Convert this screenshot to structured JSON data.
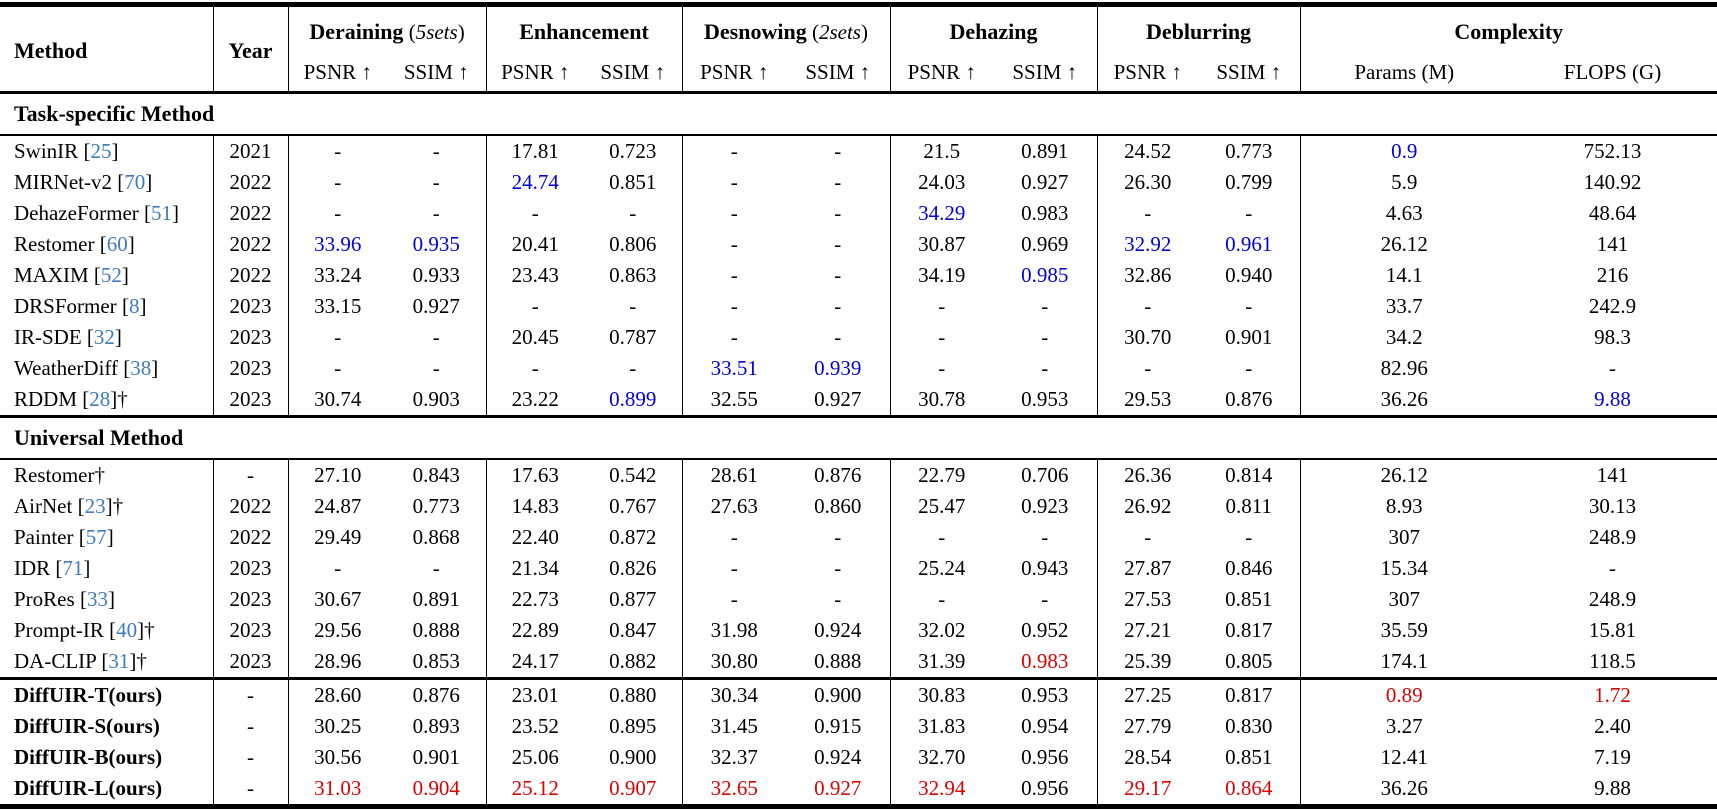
{
  "colors": {
    "citation_blue": "#3d7cbe",
    "best_task_specific_blue": "#0000dd",
    "best_universal_red": "#dd0000",
    "text": "#000000"
  },
  "header": {
    "method_label": "Method",
    "year_label": "Year",
    "groups": [
      {
        "name": "Deraining",
        "note": "5sets",
        "cols": [
          "PSNR ↑",
          "SSIM ↑"
        ]
      },
      {
        "name": "Enhancement",
        "note": "",
        "cols": [
          "PSNR ↑",
          "SSIM ↑"
        ]
      },
      {
        "name": "Desnowing",
        "note": "2sets",
        "cols": [
          "PSNR ↑",
          "SSIM ↑"
        ]
      },
      {
        "name": "Dehazing",
        "note": "",
        "cols": [
          "PSNR ↑",
          "SSIM ↑"
        ]
      },
      {
        "name": "Deblurring",
        "note": "",
        "cols": [
          "PSNR ↑",
          "SSIM ↑"
        ]
      },
      {
        "name": "Complexity",
        "note": "",
        "cols": [
          "Params (M)",
          "FLOPS (G)"
        ]
      }
    ]
  },
  "sections": [
    {
      "heading": "Task-specific Method",
      "rows": [
        {
          "method": "SwinIR",
          "cite": "25",
          "dagger": false,
          "bold": false,
          "year": "2021",
          "values": [
            "-",
            "-",
            "17.81",
            "0.723",
            "-",
            "-",
            "21.5",
            "0.891",
            "24.52",
            "0.773",
            "0.9",
            "752.13"
          ],
          "marks": {
            "10": "blue"
          }
        },
        {
          "method": "MIRNet-v2",
          "cite": "70",
          "dagger": false,
          "bold": false,
          "year": "2022",
          "values": [
            "-",
            "-",
            "24.74",
            "0.851",
            "-",
            "-",
            "24.03",
            "0.927",
            "26.30",
            "0.799",
            "5.9",
            "140.92"
          ],
          "marks": {
            "2": "blue"
          }
        },
        {
          "method": "DehazeFormer",
          "cite": "51",
          "dagger": false,
          "bold": false,
          "year": "2022",
          "values": [
            "-",
            "-",
            "-",
            "-",
            "-",
            "-",
            "34.29",
            "0.983",
            "-",
            "-",
            "4.63",
            "48.64"
          ],
          "marks": {
            "6": "blue"
          }
        },
        {
          "method": "Restomer",
          "cite": "60",
          "dagger": false,
          "bold": false,
          "year": "2022",
          "values": [
            "33.96",
            "0.935",
            "20.41",
            "0.806",
            "-",
            "-",
            "30.87",
            "0.969",
            "32.92",
            "0.961",
            "26.12",
            "141"
          ],
          "marks": {
            "0": "blue",
            "1": "blue",
            "8": "blue",
            "9": "blue"
          }
        },
        {
          "method": "MAXIM",
          "cite": "52",
          "dagger": false,
          "bold": false,
          "year": "2022",
          "values": [
            "33.24",
            "0.933",
            "23.43",
            "0.863",
            "-",
            "-",
            "34.19",
            "0.985",
            "32.86",
            "0.940",
            "14.1",
            "216"
          ],
          "marks": {
            "7": "blue"
          }
        },
        {
          "method": "DRSFormer",
          "cite": "8",
          "dagger": false,
          "bold": false,
          "year": "2023",
          "values": [
            "33.15",
            "0.927",
            "-",
            "-",
            "-",
            "-",
            "-",
            "-",
            "-",
            "-",
            "33.7",
            "242.9"
          ],
          "marks": {}
        },
        {
          "method": "IR-SDE",
          "cite": "32",
          "dagger": false,
          "bold": false,
          "year": "2023",
          "values": [
            "-",
            "-",
            "20.45",
            "0.787",
            "-",
            "-",
            "-",
            "-",
            "30.70",
            "0.901",
            "34.2",
            "98.3"
          ],
          "marks": {}
        },
        {
          "method": "WeatherDiff",
          "cite": "38",
          "dagger": false,
          "bold": false,
          "year": "2023",
          "values": [
            "-",
            "-",
            "-",
            "-",
            "33.51",
            "0.939",
            "-",
            "-",
            "-",
            "-",
            "82.96",
            "-"
          ],
          "marks": {
            "4": "blue",
            "5": "blue"
          }
        },
        {
          "method": "RDDM",
          "cite": "28",
          "dagger": true,
          "bold": false,
          "year": "2023",
          "values": [
            "30.74",
            "0.903",
            "23.22",
            "0.899",
            "32.55",
            "0.927",
            "30.78",
            "0.953",
            "29.53",
            "0.876",
            "36.26",
            "9.88"
          ],
          "marks": {
            "3": "blue",
            "11": "blue"
          }
        }
      ]
    },
    {
      "heading": "Universal Method",
      "rows": [
        {
          "method": "Restomer",
          "cite": "",
          "dagger": true,
          "bold": false,
          "year": "-",
          "values": [
            "27.10",
            "0.843",
            "17.63",
            "0.542",
            "28.61",
            "0.876",
            "22.79",
            "0.706",
            "26.36",
            "0.814",
            "26.12",
            "141"
          ],
          "marks": {}
        },
        {
          "method": "AirNet",
          "cite": "23",
          "dagger": true,
          "bold": false,
          "year": "2022",
          "values": [
            "24.87",
            "0.773",
            "14.83",
            "0.767",
            "27.63",
            "0.860",
            "25.47",
            "0.923",
            "26.92",
            "0.811",
            "8.93",
            "30.13"
          ],
          "marks": {}
        },
        {
          "method": "Painter",
          "cite": "57",
          "dagger": false,
          "bold": false,
          "year": "2022",
          "values": [
            "29.49",
            "0.868",
            "22.40",
            "0.872",
            "-",
            "-",
            "-",
            "-",
            "-",
            "-",
            "307",
            "248.9"
          ],
          "marks": {}
        },
        {
          "method": "IDR",
          "cite": "71",
          "dagger": false,
          "bold": false,
          "year": "2023",
          "values": [
            "-",
            "-",
            "21.34",
            "0.826",
            "-",
            "-",
            "25.24",
            "0.943",
            "27.87",
            "0.846",
            "15.34",
            "-"
          ],
          "marks": {}
        },
        {
          "method": "ProRes",
          "cite": "33",
          "dagger": false,
          "bold": false,
          "year": "2023",
          "values": [
            "30.67",
            "0.891",
            "22.73",
            "0.877",
            "-",
            "-",
            "-",
            "-",
            "27.53",
            "0.851",
            "307",
            "248.9"
          ],
          "marks": {}
        },
        {
          "method": "Prompt-IR",
          "cite": "40",
          "dagger": true,
          "bold": false,
          "year": "2023",
          "values": [
            "29.56",
            "0.888",
            "22.89",
            "0.847",
            "31.98",
            "0.924",
            "32.02",
            "0.952",
            "27.21",
            "0.817",
            "35.59",
            "15.81"
          ],
          "marks": {}
        },
        {
          "method": "DA-CLIP",
          "cite": "31",
          "dagger": true,
          "bold": false,
          "year": "2023",
          "values": [
            "28.96",
            "0.853",
            "24.17",
            "0.882",
            "30.80",
            "0.888",
            "31.39",
            "0.983",
            "25.39",
            "0.805",
            "174.1",
            "118.5"
          ],
          "marks": {
            "7": "red"
          }
        }
      ]
    },
    {
      "heading": "",
      "rows": [
        {
          "method": "DiffUIR-T(ours)",
          "cite": "",
          "dagger": false,
          "bold": true,
          "year": "-",
          "values": [
            "28.60",
            "0.876",
            "23.01",
            "0.880",
            "30.34",
            "0.900",
            "30.83",
            "0.953",
            "27.25",
            "0.817",
            "0.89",
            "1.72"
          ],
          "marks": {
            "10": "red",
            "11": "red"
          }
        },
        {
          "method": "DiffUIR-S(ours)",
          "cite": "",
          "dagger": false,
          "bold": true,
          "year": "-",
          "values": [
            "30.25",
            "0.893",
            "23.52",
            "0.895",
            "31.45",
            "0.915",
            "31.83",
            "0.954",
            "27.79",
            "0.830",
            "3.27",
            "2.40"
          ],
          "marks": {}
        },
        {
          "method": "DiffUIR-B(ours)",
          "cite": "",
          "dagger": false,
          "bold": true,
          "year": "-",
          "values": [
            "30.56",
            "0.901",
            "25.06",
            "0.900",
            "32.37",
            "0.924",
            "32.70",
            "0.956",
            "28.54",
            "0.851",
            "12.41",
            "7.19"
          ],
          "marks": {}
        },
        {
          "method": "DiffUIR-L(ours)",
          "cite": "",
          "dagger": false,
          "bold": true,
          "year": "-",
          "values": [
            "31.03",
            "0.904",
            "25.12",
            "0.907",
            "32.65",
            "0.927",
            "32.94",
            "0.956",
            "29.17",
            "0.864",
            "36.26",
            "9.88"
          ],
          "marks": {
            "0": "red",
            "1": "red",
            "2": "red",
            "3": "red",
            "4": "red",
            "5": "red",
            "6": "red",
            "8": "red",
            "9": "red"
          }
        }
      ]
    }
  ]
}
